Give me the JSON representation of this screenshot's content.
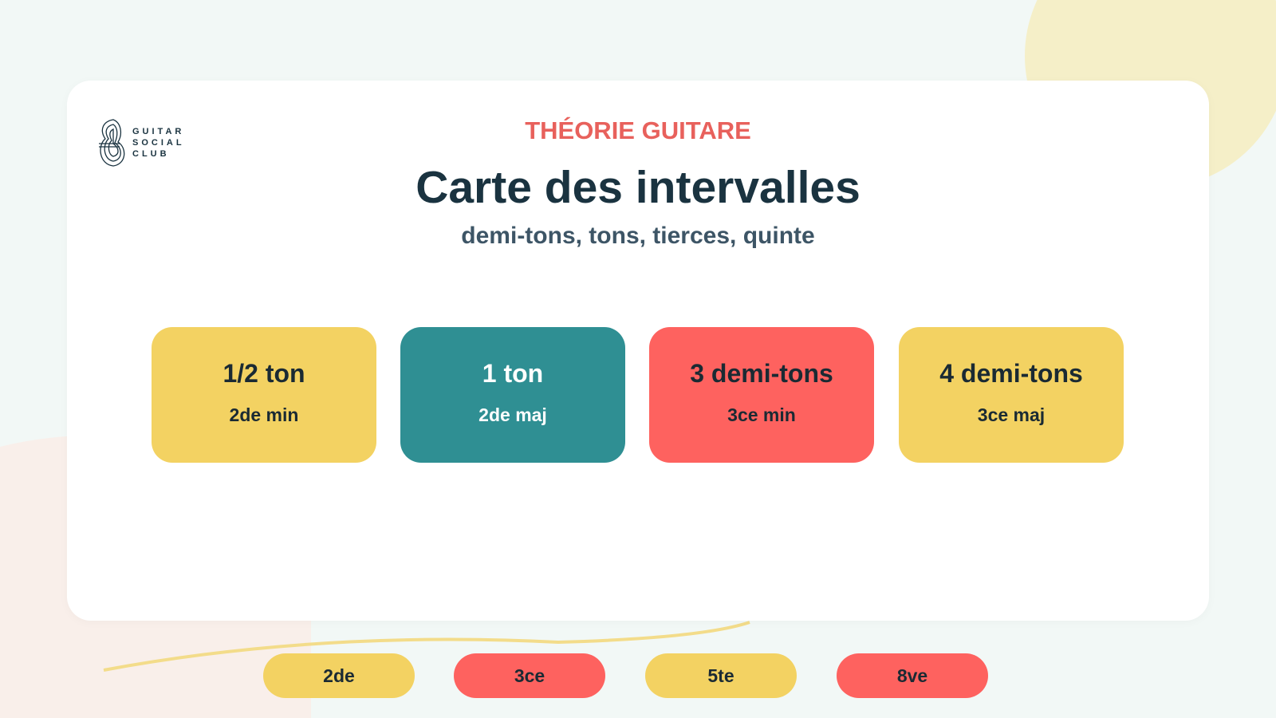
{
  "header": {
    "logo_lines": [
      "GUITAR",
      "SOCIAL",
      "CLUB"
    ],
    "kicker": "THÉORIE GUITARE",
    "title": "Carte des intervalles",
    "subtitle": "demi-tons, tons, tierces, quinte"
  },
  "cards": [
    {
      "title": "1/2 ton",
      "subtitle": "2de min",
      "color": "#f3d262",
      "text_color": "#1a2a33"
    },
    {
      "title": "1 ton",
      "subtitle": "2de maj",
      "color": "#2f8f93",
      "text_color": "#ffffff"
    },
    {
      "title": "3 demi-tons",
      "subtitle": "3ce min",
      "color": "#fe625f",
      "text_color": "#1a2a33"
    },
    {
      "title": "4 demi-tons",
      "subtitle": "3ce maj",
      "color": "#f3d262",
      "text_color": "#1a2a33"
    }
  ],
  "pills": [
    {
      "label": "2de",
      "color": "#f3d262"
    },
    {
      "label": "3ce",
      "color": "#fe625f"
    },
    {
      "label": "5te",
      "color": "#f3d262"
    },
    {
      "label": "8ve",
      "color": "#fe625f"
    }
  ]
}
